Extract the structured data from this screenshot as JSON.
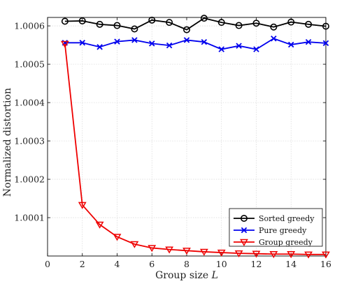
{
  "chart_data": {
    "type": "line",
    "xlabel": "Group size ",
    "xlabel_italic": "L",
    "ylabel": "Normalized distortion",
    "xlim": [
      0,
      16
    ],
    "ylim": [
      1.0,
      1.000622
    ],
    "x_ticks": [
      0,
      2,
      4,
      6,
      8,
      10,
      12,
      14,
      16
    ],
    "y_ticks": [
      1.0001,
      1.0002,
      1.0003,
      1.0004,
      1.0005,
      1.0006
    ],
    "y_tick_labels": [
      "1.0001",
      "1.0002",
      "1.0003",
      "1.0004",
      "1.0005",
      "1.0006"
    ],
    "grid": true,
    "legend_position": "bottom-right",
    "x": [
      1,
      2,
      3,
      4,
      5,
      6,
      7,
      8,
      9,
      10,
      11,
      12,
      13,
      14,
      15,
      16
    ],
    "series": [
      {
        "name": "Sorted greedy",
        "color": "#000000",
        "marker": "circle",
        "values": [
          1.000612,
          1.000613,
          1.000604,
          1.000601,
          1.000592,
          1.000615,
          1.000609,
          1.00059,
          1.00062,
          1.000609,
          1.000601,
          1.000607,
          1.000597,
          1.00061,
          1.000604,
          1.000599
        ]
      },
      {
        "name": "Pure greedy",
        "color": "#0000ee",
        "marker": "x",
        "values": [
          1.000556,
          1.000556,
          1.000545,
          1.000559,
          1.000563,
          1.000554,
          1.000549,
          1.000563,
          1.000558,
          1.000539,
          1.000548,
          1.000539,
          1.000567,
          1.000551,
          1.000558,
          1.000555
        ]
      },
      {
        "name": "Group greedy",
        "color": "#ee0000",
        "marker": "triangle-down",
        "values": [
          1.000553,
          1.000133,
          1.000082,
          1.00005,
          1.000031,
          1.000021,
          1.000017,
          1.000014,
          1.000011,
          1.000009,
          1.000007,
          1.000006,
          1.000005,
          1.000005,
          1.000004,
          1.000004
        ]
      }
    ]
  }
}
